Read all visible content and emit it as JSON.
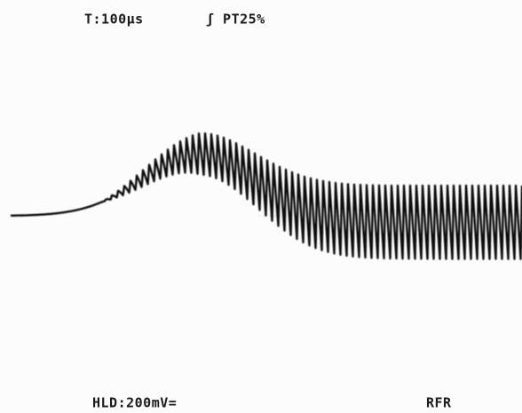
{
  "header": {
    "timebase": "T:100μs",
    "trigger": "ʃ PT25%"
  },
  "footer": {
    "hold": "HLD:200mV=",
    "mode": "RFR"
  }
}
